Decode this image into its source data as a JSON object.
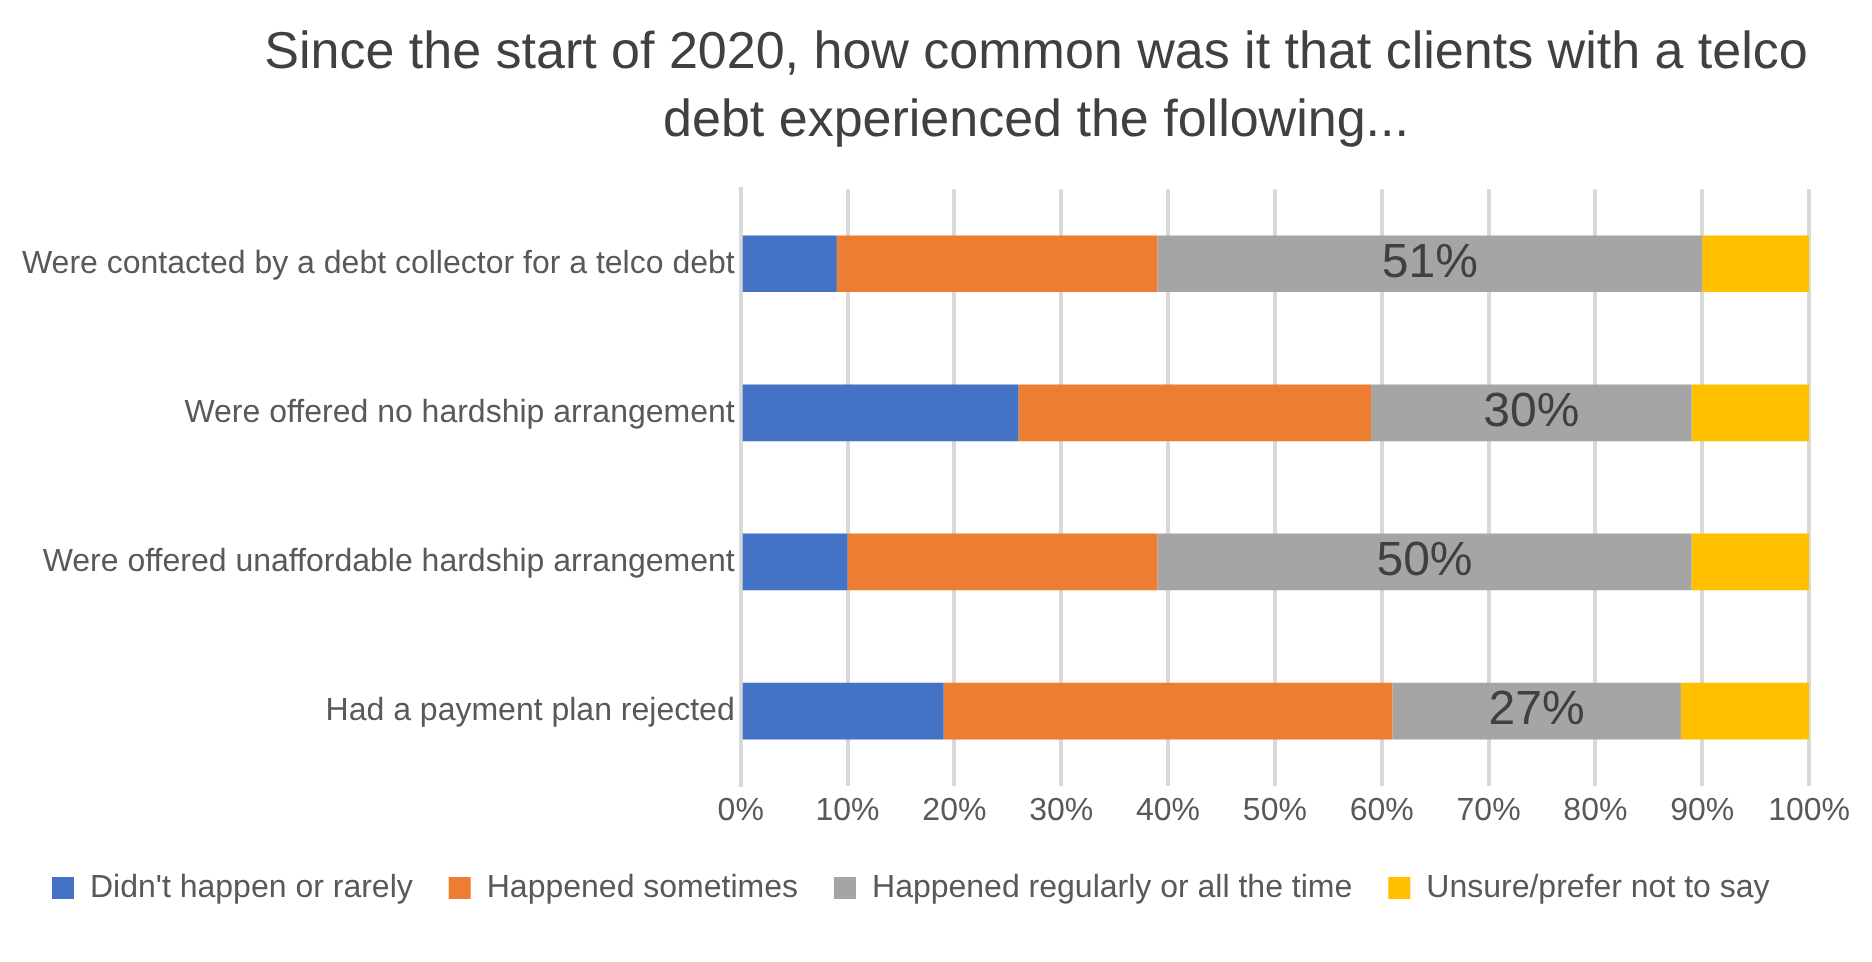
{
  "chart_data": {
    "type": "bar",
    "orientation": "horizontal",
    "stacked": true,
    "title": "Since the start of 2020, how common was it that clients with a telco debt experienced the following...",
    "categories": [
      "Were contacted by a debt collector for a telco debt",
      "Were offered no hardship arrangement",
      "Were offered unaffordable hardship arrangement",
      "Had a payment plan rejected"
    ],
    "series": [
      {
        "name": "Didn't happen or rarely",
        "color": "#4472c4",
        "values": [
          9,
          26,
          10,
          19
        ]
      },
      {
        "name": "Happened sometimes",
        "color": "#ed7d31",
        "values": [
          30,
          33,
          29,
          42
        ]
      },
      {
        "name": "Happened regularly or all the time",
        "color": "#a5a5a5",
        "values": [
          51,
          30,
          50,
          27
        ],
        "value_labels": [
          "51%",
          "30%",
          "50%",
          "27%"
        ]
      },
      {
        "name": "Unsure/prefer not to say",
        "color": "#ffc000",
        "values": [
          10,
          11,
          11,
          12
        ]
      }
    ],
    "xlim": [
      0,
      100
    ],
    "xticks": [
      {
        "value": 0,
        "label": "0%"
      },
      {
        "value": 10,
        "label": "10%"
      },
      {
        "value": 20,
        "label": "20%"
      },
      {
        "value": 30,
        "label": "30%"
      },
      {
        "value": 40,
        "label": "40%"
      },
      {
        "value": 50,
        "label": "50%"
      },
      {
        "value": 60,
        "label": "60%"
      },
      {
        "value": 70,
        "label": "70%"
      },
      {
        "value": 80,
        "label": "80%"
      },
      {
        "value": 90,
        "label": "90%"
      },
      {
        "value": 100,
        "label": "100%"
      }
    ],
    "grid": "x",
    "legend": "bottom"
  }
}
